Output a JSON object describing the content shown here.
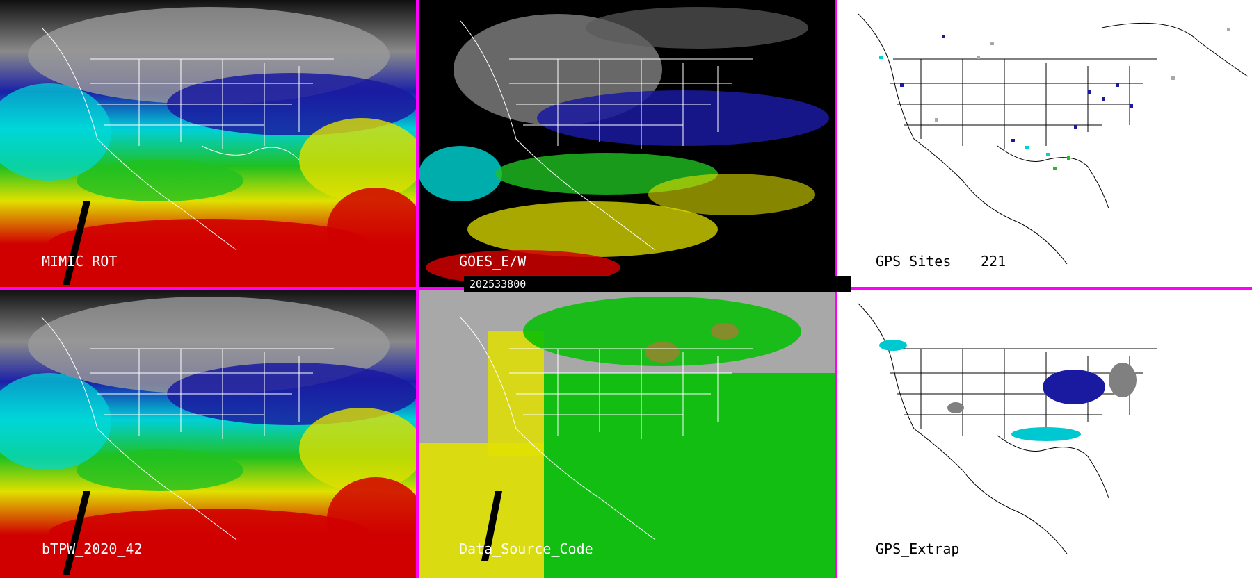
{
  "timestamp": "202533800",
  "panels": [
    {
      "id": "mimic-rot",
      "label": "MIMIC ROT",
      "style": "tpw"
    },
    {
      "id": "goes-ew",
      "label": "GOES_E/W",
      "style": "goes"
    },
    {
      "id": "gps-sites",
      "label": "GPS Sites",
      "count": "221",
      "style": "gps"
    },
    {
      "id": "btpw",
      "label": "bTPW_2020_42",
      "style": "tpw"
    },
    {
      "id": "data-source",
      "label": "Data_Source_Code",
      "style": "source"
    },
    {
      "id": "gps-extrap",
      "label": "GPS_Extrap",
      "style": "extrap"
    }
  ],
  "colors": {
    "divider": "#ff00ff",
    "red": "#d00000",
    "yellow": "#e8e800",
    "green": "#00c000",
    "cyan": "#00e0e0",
    "blue": "#1020a0",
    "gray": "#a8a8a8",
    "black": "#000000"
  }
}
